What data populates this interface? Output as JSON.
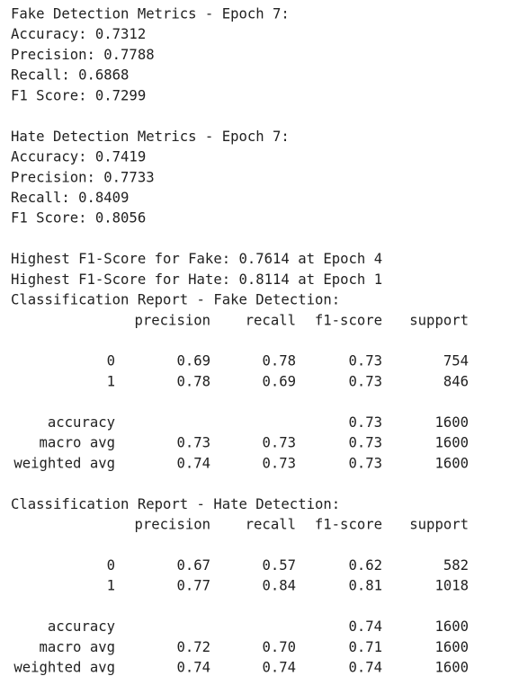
{
  "sections": [
    {
      "title": "Fake Detection Metrics - Epoch 7:",
      "lines": [
        "Accuracy: 0.7312",
        "Precision: 0.7788",
        "Recall: 0.6868",
        "F1 Score: 0.7299"
      ]
    },
    {
      "title": "Hate Detection Metrics - Epoch 7:",
      "lines": [
        "Accuracy: 0.7419",
        "Precision: 0.7733",
        "Recall: 0.8409",
        "F1 Score: 0.8056"
      ]
    }
  ],
  "highest": [
    "Highest F1-Score for Fake: 0.7614 at Epoch 4",
    "Highest F1-Score for Hate: 0.8114 at Epoch 1"
  ],
  "reports": [
    {
      "title": "Classification Report - Fake Detection:",
      "header": [
        "precision",
        "recall",
        "f1-score",
        "support"
      ],
      "class_rows": [
        [
          "0",
          "0.69",
          "0.78",
          "0.73",
          "754"
        ],
        [
          "1",
          "0.78",
          "0.69",
          "0.73",
          "846"
        ]
      ],
      "summary_rows": [
        [
          "accuracy",
          null,
          null,
          "0.73",
          "1600"
        ],
        [
          "macro avg",
          "0.73",
          "0.73",
          "0.73",
          "1600"
        ],
        [
          "weighted avg",
          "0.74",
          "0.73",
          "0.73",
          "1600"
        ]
      ]
    },
    {
      "title": "Classification Report - Hate Detection:",
      "header": [
        "precision",
        "recall",
        "f1-score",
        "support"
      ],
      "class_rows": [
        [
          "0",
          "0.67",
          "0.57",
          "0.62",
          "582"
        ],
        [
          "1",
          "0.77",
          "0.84",
          "0.81",
          "1018"
        ]
      ],
      "summary_rows": [
        [
          "accuracy",
          null,
          null,
          "0.74",
          "1600"
        ],
        [
          "macro avg",
          "0.72",
          "0.70",
          "0.71",
          "1600"
        ],
        [
          "weighted avg",
          "0.74",
          "0.74",
          "0.74",
          "1600"
        ]
      ]
    }
  ]
}
